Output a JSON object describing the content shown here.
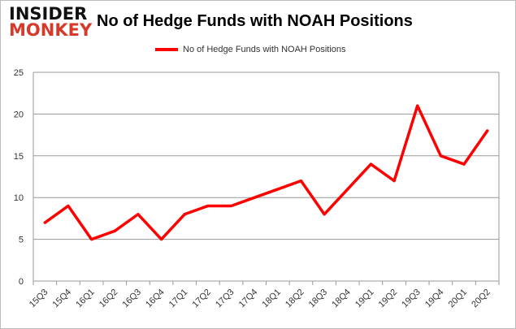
{
  "logo": {
    "line1": "INSIDER",
    "line2": "MONKEY"
  },
  "chart_data": {
    "type": "line",
    "title": "No of Hedge Funds with NOAH Positions",
    "categories": [
      "15Q3",
      "15Q4",
      "16Q1",
      "16Q2",
      "16Q3",
      "16Q4",
      "17Q1",
      "17Q2",
      "17Q3",
      "17Q4",
      "18Q1",
      "18Q2",
      "18Q3",
      "18Q4",
      "19Q1",
      "19Q2",
      "19Q3",
      "19Q4",
      "20Q1",
      "20Q2"
    ],
    "series": [
      {
        "name": "No of Hedge Funds with NOAH Positions",
        "color": "#ff0000",
        "values": [
          7,
          9,
          5,
          6,
          8,
          5,
          8,
          9,
          9,
          10,
          11,
          12,
          8,
          11,
          14,
          12,
          21,
          15,
          14,
          18
        ]
      }
    ],
    "yticks": [
      0,
      5,
      10,
      15,
      20,
      25
    ],
    "ylim": [
      0,
      25
    ],
    "grid": true,
    "legend": "top-center"
  }
}
